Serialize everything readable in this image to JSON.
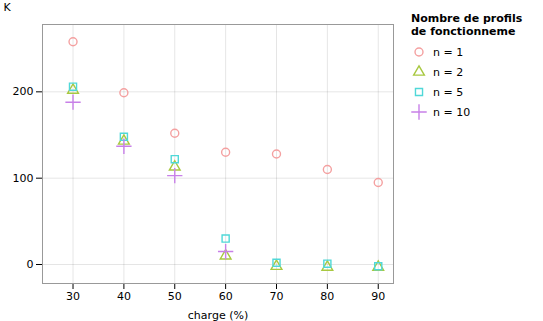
{
  "chart_data": {
    "type": "scatter",
    "xlabel": "charge (%)",
    "ylabel": "K",
    "legend_title": "Nombre de profils\nde fonctionneme",
    "legend": "right",
    "grid": true,
    "xlim": [
      24,
      93
    ],
    "ylim": [
      -22,
      278
    ],
    "xticks": [
      30,
      40,
      50,
      60,
      70,
      80,
      90
    ],
    "yticks": [
      0,
      100,
      200
    ],
    "series": [
      {
        "name": "n = 1",
        "color": "#F4A0A0",
        "marker": "circle",
        "x": [
          30,
          40,
          50,
          60,
          70,
          80,
          90
        ],
        "values": [
          258,
          199,
          152,
          130,
          128,
          110,
          95
        ]
      },
      {
        "name": "n = 2",
        "color": "#A8C840",
        "marker": "triangle",
        "x": [
          30,
          40,
          50,
          60,
          70,
          80,
          90
        ],
        "values": [
          202,
          143,
          113,
          10,
          -2,
          -3,
          -3
        ]
      },
      {
        "name": "n = 5",
        "color": "#50D8D8",
        "marker": "square",
        "x": [
          30,
          40,
          50,
          60,
          70,
          80,
          90
        ],
        "values": [
          206,
          148,
          122,
          30,
          2,
          1,
          -2
        ]
      },
      {
        "name": "n = 10",
        "color": "#C880E8",
        "marker": "plus",
        "x": [
          30,
          40,
          50,
          60
        ],
        "values": [
          188,
          137,
          103,
          15
        ]
      }
    ]
  }
}
